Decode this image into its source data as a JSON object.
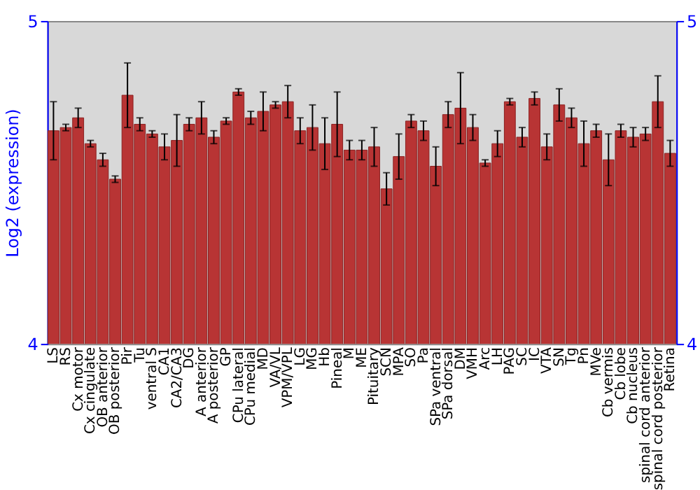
{
  "chart_data": {
    "type": "bar",
    "ylabel": "Log2 (expression)",
    "categories": [
      "LS",
      "RS",
      "Cx motor",
      "Cx cingulate",
      "OB anterior",
      "OB posterior",
      "Pir",
      "Tu",
      "ventral S",
      "CA1",
      "CA2/CA3",
      "DG",
      "A anterior",
      "A posterior",
      "GP",
      "CPu lateral",
      "CPu medial",
      "MD",
      "VA/VL",
      "VPM/VPL",
      "LG",
      "MG",
      "Hb",
      "Pineal",
      "M",
      "ME",
      "Pituitary",
      "SCN",
      "MPA",
      "SO",
      "Pa",
      "SPa ventral",
      "SPa dorsal",
      "DM",
      "VMH",
      "Arc",
      "LH",
      "PAG",
      "SC",
      "IC",
      "VTA",
      "SN",
      "Tg",
      "Pn",
      "MVe",
      "Cb vermis",
      "Cb lobe",
      "Cb nucleus",
      "spinal cord anterior",
      "spinal cord posterior",
      "Retina"
    ],
    "values": [
      4.66,
      4.67,
      4.7,
      4.62,
      4.57,
      4.51,
      4.77,
      4.68,
      4.65,
      4.61,
      4.63,
      4.68,
      4.7,
      4.64,
      4.69,
      4.78,
      4.7,
      4.72,
      4.74,
      4.75,
      4.66,
      4.67,
      4.62,
      4.68,
      4.6,
      4.6,
      4.61,
      4.48,
      4.58,
      4.69,
      4.66,
      4.55,
      4.71,
      4.73,
      4.67,
      4.56,
      4.62,
      4.75,
      4.64,
      4.76,
      4.61,
      4.74,
      4.7,
      4.62,
      4.66,
      4.57,
      4.66,
      4.64,
      4.65,
      4.75,
      4.59
    ],
    "errors": [
      0.09,
      0.01,
      0.03,
      0.01,
      0.02,
      0.01,
      0.1,
      0.02,
      0.01,
      0.04,
      0.08,
      0.02,
      0.05,
      0.02,
      0.01,
      0.01,
      0.02,
      0.06,
      0.01,
      0.05,
      0.04,
      0.07,
      0.08,
      0.1,
      0.03,
      0.03,
      0.06,
      0.05,
      0.07,
      0.02,
      0.03,
      0.06,
      0.04,
      0.11,
      0.04,
      0.01,
      0.04,
      0.01,
      0.03,
      0.02,
      0.04,
      0.05,
      0.03,
      0.07,
      0.02,
      0.08,
      0.02,
      0.03,
      0.02,
      0.08,
      0.04
    ],
    "color": "#b83434",
    "ylim": [
      4,
      5
    ],
    "yticks": [
      4,
      5
    ],
    "y2lim": [
      4,
      5
    ],
    "y2ticks": [
      4,
      5
    ],
    "grid": false
  }
}
